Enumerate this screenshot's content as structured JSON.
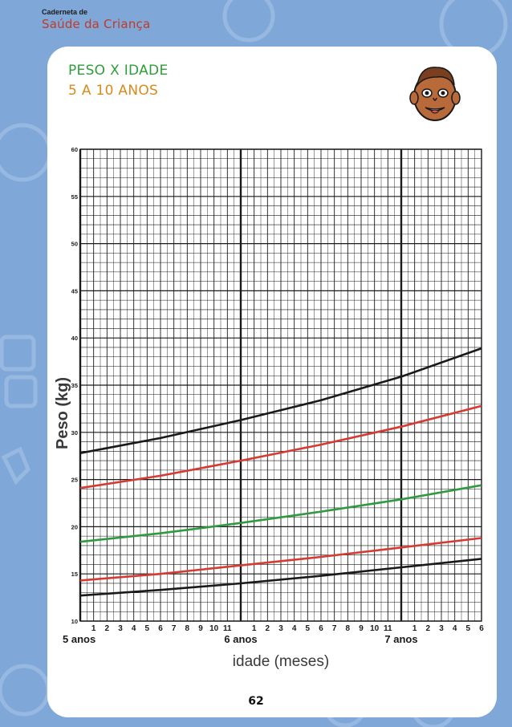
{
  "header": {
    "small": "Caderneta de",
    "big": "Saúde da Criança"
  },
  "title": {
    "line1": "PESO X IDADE",
    "line2": "5 A 10 ANOS"
  },
  "page_number": "62",
  "icons": {
    "face": "child-face-icon"
  },
  "colors": {
    "background": "#7fa8d8",
    "title_line1": "#2e9e3a",
    "title_line2": "#d98a1c",
    "header_big": "#c0392b"
  },
  "chart_data": {
    "type": "line",
    "ylabel": "Peso (kg)",
    "xlabel": "idade (meses)",
    "ylim": [
      10,
      60
    ],
    "yticks": [
      10,
      15,
      20,
      25,
      30,
      35,
      40,
      45,
      50,
      55,
      60
    ],
    "x_unit": "months",
    "xlim": [
      0,
      30
    ],
    "month_ticks": [
      "1",
      "2",
      "3",
      "4",
      "5",
      "6",
      "7",
      "8",
      "9",
      "10",
      "11",
      "1",
      "2",
      "3",
      "4",
      "5",
      "6",
      "7",
      "8",
      "9",
      "10",
      "11",
      "1",
      "2",
      "3",
      "4",
      "5",
      "6"
    ],
    "year_labels": [
      {
        "label": "5 anos",
        "x": 0
      },
      {
        "label": "6 anos",
        "x": 12
      },
      {
        "label": "7 anos",
        "x": 24
      }
    ],
    "grid": true,
    "series": [
      {
        "color": "#1a1a1a",
        "x": [
          0,
          6,
          12,
          18,
          24,
          30
        ],
        "y": [
          27.8,
          29.4,
          31.3,
          33.4,
          35.9,
          38.9
        ]
      },
      {
        "color": "#d63a32",
        "x": [
          0,
          6,
          12,
          18,
          24,
          30
        ],
        "y": [
          24.1,
          25.4,
          27.0,
          28.7,
          30.6,
          32.8
        ]
      },
      {
        "color": "#2f9a3f",
        "x": [
          0,
          6,
          12,
          18,
          24,
          30
        ],
        "y": [
          18.4,
          19.3,
          20.4,
          21.6,
          22.9,
          24.4
        ]
      },
      {
        "color": "#d63a32",
        "x": [
          0,
          6,
          12,
          18,
          24,
          30
        ],
        "y": [
          14.3,
          15.0,
          15.9,
          16.8,
          17.8,
          18.8
        ]
      },
      {
        "color": "#1a1a1a",
        "x": [
          0,
          6,
          12,
          18,
          24,
          30
        ],
        "y": [
          12.7,
          13.3,
          14.0,
          14.8,
          15.7,
          16.6
        ]
      }
    ]
  }
}
